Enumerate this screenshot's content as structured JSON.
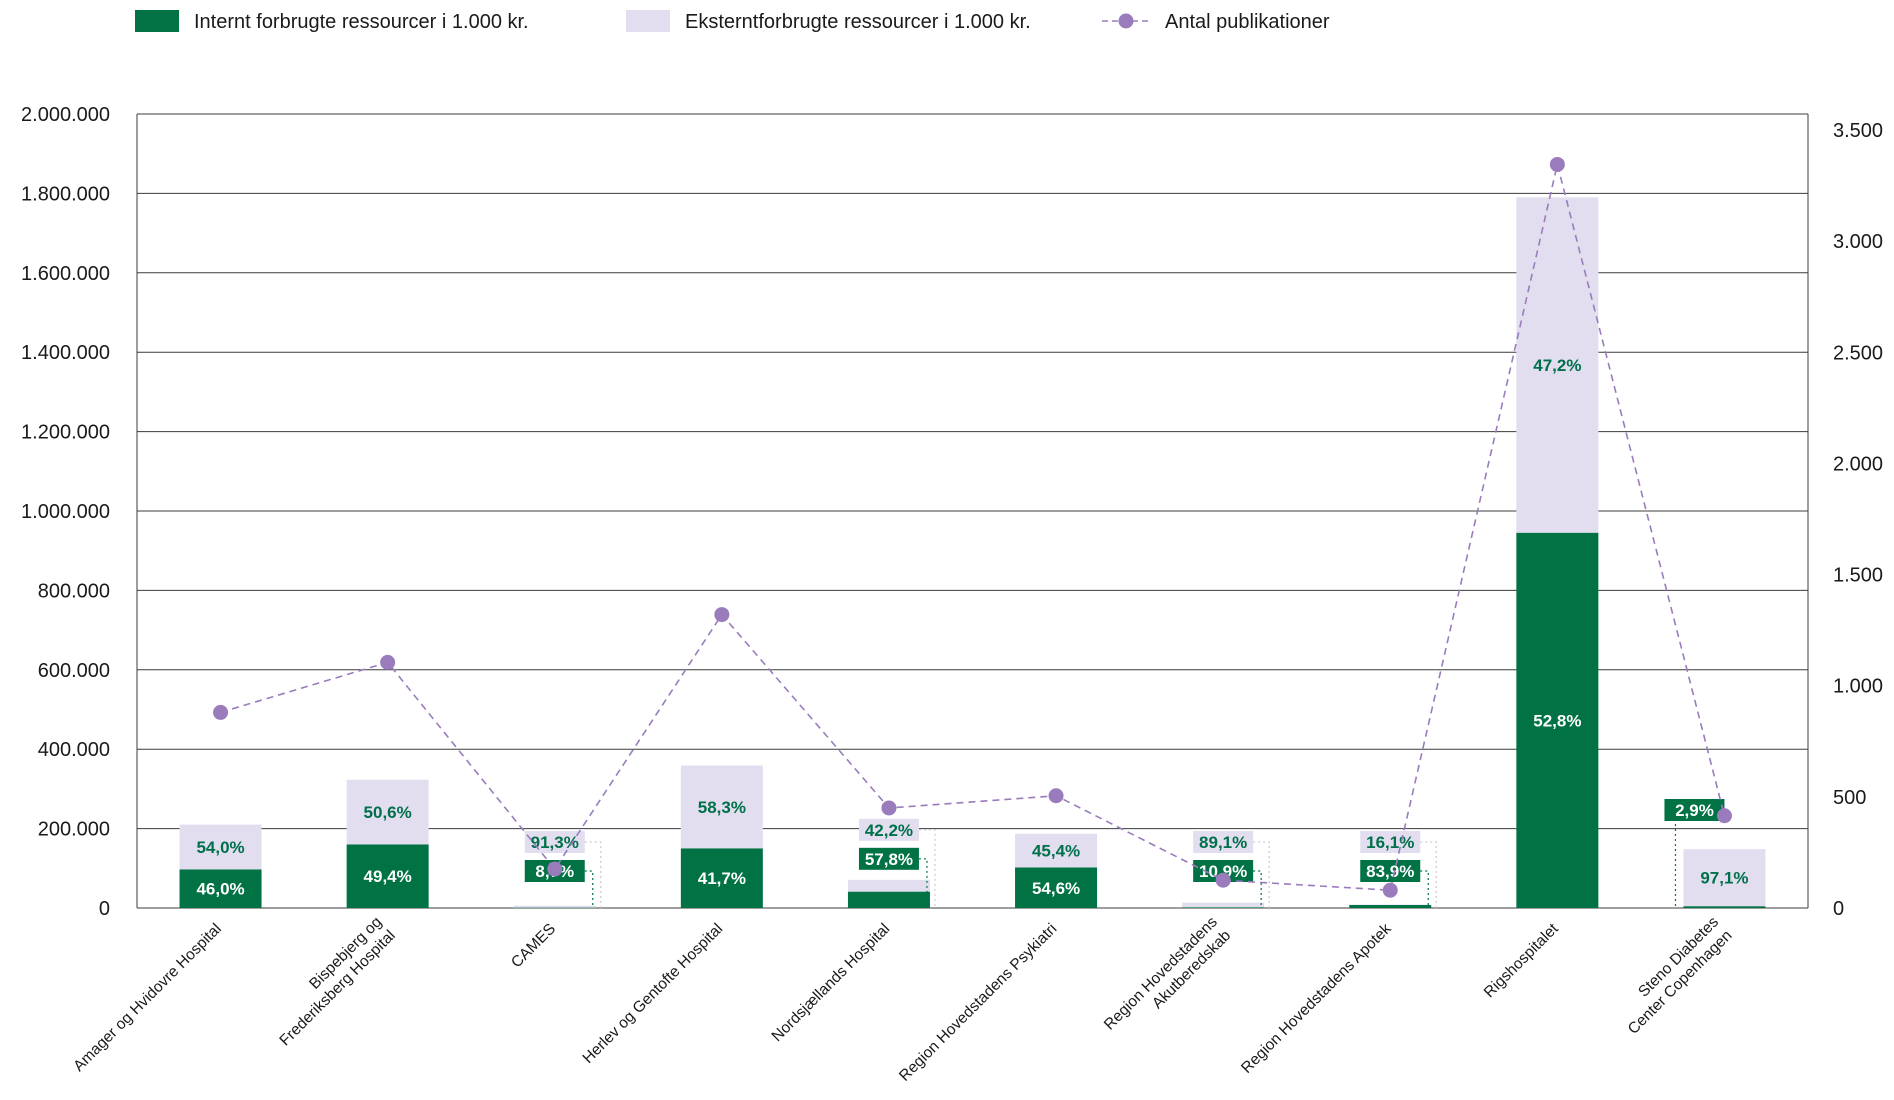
{
  "colors": {
    "internal": "#007244",
    "external": "#e2deef",
    "line": "#9a7cbd",
    "grid": "#3c3c3c",
    "pct_text": "#00704a"
  },
  "chart_data": {
    "type": "bar",
    "stacked": true,
    "legend_position": "top-left",
    "grid": true,
    "categories": [
      "Amager og Hvidovre Hospital",
      "Bispebjerg og\nFrederiksberg Hospital",
      "CAMES",
      "Herlev og Gentofte Hospital",
      "Nordsjællands Hospital",
      "Region Hovedstadens Psykiatri",
      "Region Hovedstadens\nAkutberedskab",
      "Region Hovedstadens Apotek",
      "Rigshospitalet",
      "Steno Diabetes\nCenter Copenhagen"
    ],
    "series": [
      {
        "name": "Internt forbrugte ressourcer i 1.000 kr.",
        "kind": "bar",
        "axis": "left",
        "values": [
          97000,
          160000,
          500,
          150000,
          41000,
          102000,
          1500,
          7500,
          945000,
          4300
        ],
        "pct_labels": [
          "46,0%",
          "49,4%",
          "8,7%",
          "41,7%",
          "57,8%",
          "54,6%",
          "10,9%",
          "83,9%",
          "52,8%",
          "2,9%"
        ]
      },
      {
        "name": "Eksterntforbrugte ressourcer i 1.000 kr.",
        "kind": "bar",
        "axis": "left",
        "values": [
          113000,
          163000,
          5200,
          209000,
          30000,
          85000,
          12000,
          1400,
          845000,
          144000
        ],
        "pct_labels": [
          "54,0%",
          "50,6%",
          "91,3%",
          "58,3%",
          "42,2%",
          "45,4%",
          "89,1%",
          "16,1%",
          "47,2%",
          "97,1%"
        ]
      },
      {
        "name": "Antal publikationer",
        "kind": "line",
        "axis": "right",
        "values": [
          880,
          1105,
          175,
          1320,
          450,
          505,
          125,
          80,
          3345,
          415
        ]
      }
    ],
    "y_left": {
      "min": 0,
      "max": 2000000,
      "ticks": [
        0,
        200000,
        400000,
        600000,
        800000,
        1000000,
        1200000,
        1400000,
        1600000,
        1800000,
        2000000
      ],
      "tick_labels": [
        "0",
        "200.000",
        "400.000",
        "600.000",
        "800.000",
        "1.000.000",
        "1.200.000",
        "1.400.000",
        "1.600.000",
        "1.800.000",
        "2.000.000"
      ]
    },
    "y_right": {
      "min": 0,
      "max": 3500,
      "ticks": [
        0,
        500,
        1000,
        1500,
        2000,
        2500,
        3000,
        3500
      ],
      "tick_labels": [
        "0",
        "500",
        "1.000",
        "1.500",
        "2.000",
        "2.500",
        "3.000",
        "3.500"
      ]
    }
  }
}
